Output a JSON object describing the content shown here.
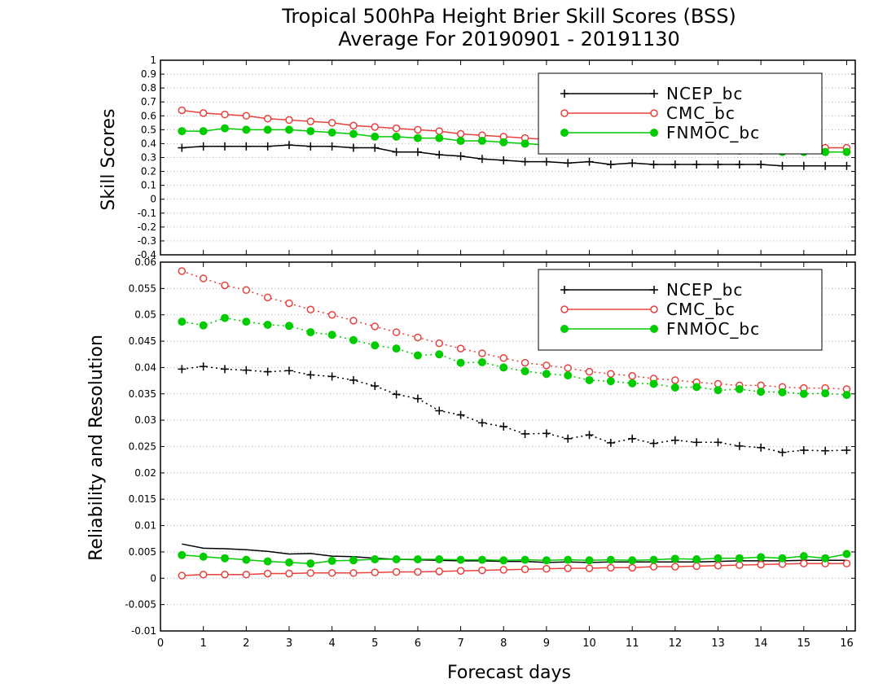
{
  "title_line1": "Tropical 500hPa Height Brier Skill Scores (BSS)",
  "title_line2": "Average For 20190901 - 20191130",
  "xlabel": "Forecast days",
  "colors": {
    "NCEP_bc": "#000000",
    "CMC_bc": "#e8413c",
    "FNMOC_bc": "#00cc00"
  },
  "chart_data": [
    {
      "type": "line",
      "panel": "top",
      "ylabel": "Skill Scores",
      "xlim": [
        0,
        16.2
      ],
      "ylim": [
        -0.4,
        1
      ],
      "x_ticks": [
        0,
        1,
        2,
        3,
        4,
        5,
        6,
        7,
        8,
        9,
        10,
        11,
        12,
        13,
        14,
        15,
        16
      ],
      "y_ticks": [
        "-0.4",
        "-0.3",
        "-0.2",
        "-0.1",
        "0",
        "0.1",
        "0.2",
        "0.3",
        "0.4",
        "0.5",
        "0.6",
        "0.7",
        "0.8",
        "0.9",
        "1"
      ],
      "grid": "horizontal-dotted",
      "legend_position": "top-right",
      "x": [
        0.5,
        1,
        1.5,
        2,
        2.5,
        3,
        3.5,
        4,
        4.5,
        5,
        5.5,
        6,
        6.5,
        7,
        7.5,
        8,
        8.5,
        9,
        9.5,
        10,
        10.5,
        11,
        11.5,
        12,
        12.5,
        13,
        13.5,
        14,
        14.5,
        15,
        15.5,
        16
      ],
      "series": [
        {
          "name": "NCEP_bc",
          "marker": "plus",
          "style": "solid",
          "values": [
            0.37,
            0.38,
            0.38,
            0.38,
            0.38,
            0.39,
            0.38,
            0.38,
            0.37,
            0.37,
            0.34,
            0.34,
            0.32,
            0.31,
            0.29,
            0.28,
            0.27,
            0.27,
            0.26,
            0.27,
            0.25,
            0.26,
            0.25,
            0.25,
            0.25,
            0.25,
            0.25,
            0.25,
            0.24,
            0.24,
            0.24,
            0.24
          ]
        },
        {
          "name": "CMC_bc",
          "marker": "open-circle",
          "style": "solid",
          "values": [
            0.64,
            0.62,
            0.61,
            0.6,
            0.58,
            0.57,
            0.56,
            0.55,
            0.53,
            0.52,
            0.51,
            0.5,
            0.49,
            0.47,
            0.46,
            0.45,
            0.44,
            0.43,
            0.42,
            0.41,
            0.4,
            0.4,
            0.39,
            0.39,
            0.38,
            0.38,
            0.38,
            0.37,
            0.37,
            0.37,
            0.37,
            0.37
          ]
        },
        {
          "name": "FNMOC_bc",
          "marker": "filled-circle",
          "style": "solid",
          "values": [
            0.49,
            0.49,
            0.51,
            0.5,
            0.5,
            0.5,
            0.49,
            0.48,
            0.47,
            0.45,
            0.45,
            0.44,
            0.44,
            0.42,
            0.42,
            0.41,
            0.4,
            0.39,
            0.38,
            0.38,
            0.37,
            0.37,
            0.36,
            0.36,
            0.36,
            0.35,
            0.35,
            0.35,
            0.34,
            0.34,
            0.34,
            0.34
          ]
        }
      ]
    },
    {
      "type": "line",
      "panel": "bottom",
      "ylabel": "Reliability and Resolution",
      "xlim": [
        0,
        16.2
      ],
      "ylim": [
        -0.01,
        0.06
      ],
      "x_ticks": [
        0,
        1,
        2,
        3,
        4,
        5,
        6,
        7,
        8,
        9,
        10,
        11,
        12,
        13,
        14,
        15,
        16
      ],
      "y_ticks": [
        "-0.01",
        "-0.005",
        "0",
        "0.005",
        "0.01",
        "0.015",
        "0.02",
        "0.025",
        "0.03",
        "0.035",
        "0.04",
        "0.045",
        "0.05",
        "0.055",
        "0.06"
      ],
      "grid": "horizontal-dotted",
      "legend_position": "top-right",
      "x": [
        0.5,
        1,
        1.5,
        2,
        2.5,
        3,
        3.5,
        4,
        4.5,
        5,
        5.5,
        6,
        6.5,
        7,
        7.5,
        8,
        8.5,
        9,
        9.5,
        10,
        10.5,
        11,
        11.5,
        12,
        12.5,
        13,
        13.5,
        14,
        14.5,
        15,
        15.5,
        16
      ],
      "series": [
        {
          "name": "NCEP_bc",
          "role": "resolution",
          "marker": "plus",
          "style": "dotted",
          "values": [
            0.0397,
            0.0402,
            0.0397,
            0.0395,
            0.0392,
            0.0394,
            0.0386,
            0.0383,
            0.0376,
            0.0365,
            0.0349,
            0.0341,
            0.0318,
            0.031,
            0.0295,
            0.0288,
            0.0274,
            0.0275,
            0.0265,
            0.0272,
            0.0257,
            0.0265,
            0.0256,
            0.0262,
            0.0258,
            0.0258,
            0.0251,
            0.0248,
            0.0239,
            0.0243,
            0.0242,
            0.0243
          ]
        },
        {
          "name": "CMC_bc",
          "role": "resolution",
          "marker": "open-circle",
          "style": "dotted",
          "values": [
            0.0583,
            0.0569,
            0.0556,
            0.0547,
            0.0533,
            0.0522,
            0.051,
            0.05,
            0.0489,
            0.0478,
            0.0467,
            0.0457,
            0.0446,
            0.0436,
            0.0427,
            0.0418,
            0.0409,
            0.0404,
            0.0399,
            0.0392,
            0.0388,
            0.0384,
            0.0379,
            0.0376,
            0.0372,
            0.0369,
            0.0366,
            0.0366,
            0.0363,
            0.0361,
            0.0361,
            0.0359
          ]
        },
        {
          "name": "FNMOC_bc",
          "role": "resolution",
          "marker": "filled-circle",
          "style": "dotted",
          "values": [
            0.0487,
            0.048,
            0.0494,
            0.0487,
            0.0481,
            0.0479,
            0.0467,
            0.0462,
            0.0452,
            0.0442,
            0.0436,
            0.0423,
            0.0425,
            0.0409,
            0.041,
            0.04,
            0.0393,
            0.0388,
            0.0385,
            0.0376,
            0.0374,
            0.037,
            0.0369,
            0.0362,
            0.0363,
            0.0357,
            0.0359,
            0.0354,
            0.0353,
            0.035,
            0.0351,
            0.0348
          ]
        },
        {
          "name": "NCEP_bc",
          "role": "reliability",
          "marker": "none",
          "style": "solid",
          "values": [
            0.0065,
            0.0057,
            0.0056,
            0.0054,
            0.0051,
            0.0046,
            0.0047,
            0.0042,
            0.0041,
            0.0038,
            0.0036,
            0.0035,
            0.0034,
            0.0033,
            0.0033,
            0.0032,
            0.0032,
            0.003,
            0.0031,
            0.003,
            0.0031,
            0.0031,
            0.0031,
            0.0031,
            0.0031,
            0.0032,
            0.0033,
            0.0033,
            0.0033,
            0.0034,
            0.0034,
            0.0034
          ]
        },
        {
          "name": "CMC_bc",
          "role": "reliability",
          "marker": "open-circle",
          "style": "solid",
          "values": [
            0.0005,
            0.0007,
            0.0007,
            0.0007,
            0.0009,
            0.0009,
            0.001,
            0.001,
            0.001,
            0.0011,
            0.0012,
            0.0012,
            0.0013,
            0.0014,
            0.0015,
            0.0016,
            0.0017,
            0.0018,
            0.0019,
            0.0019,
            0.002,
            0.002,
            0.0022,
            0.0022,
            0.0023,
            0.0024,
            0.0025,
            0.0026,
            0.0027,
            0.0028,
            0.0028,
            0.0028
          ]
        },
        {
          "name": "FNMOC_bc",
          "role": "reliability",
          "marker": "filled-circle",
          "style": "solid",
          "values": [
            0.0044,
            0.0041,
            0.0038,
            0.0035,
            0.0032,
            0.003,
            0.0028,
            0.0033,
            0.0034,
            0.0036,
            0.0036,
            0.0036,
            0.0036,
            0.0035,
            0.0035,
            0.0034,
            0.0035,
            0.0034,
            0.0035,
            0.0034,
            0.0035,
            0.0034,
            0.0035,
            0.0037,
            0.0036,
            0.0038,
            0.0038,
            0.004,
            0.0038,
            0.0042,
            0.0038,
            0.0046
          ]
        }
      ]
    }
  ]
}
